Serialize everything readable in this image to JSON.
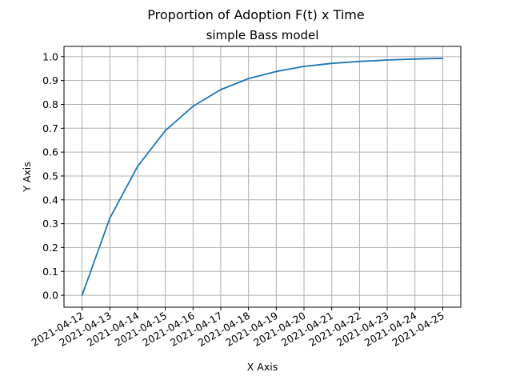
{
  "chart_data": {
    "type": "line",
    "title": "Proportion of Adoption F(t) x Time",
    "subtitle": "simple Bass model",
    "xlabel": "X Axis",
    "ylabel": "Y Axis",
    "x": [
      "2021-04-12",
      "2021-04-13",
      "2021-04-14",
      "2021-04-15",
      "2021-04-16",
      "2021-04-17",
      "2021-04-18",
      "2021-04-19",
      "2021-04-20",
      "2021-04-21",
      "2021-04-22",
      "2021-04-23",
      "2021-04-24",
      "2021-04-25"
    ],
    "series": [
      {
        "values": [
          0.0,
          0.323,
          0.54,
          0.69,
          0.792,
          0.862,
          0.908,
          0.938,
          0.959,
          0.972,
          0.98,
          0.986,
          0.99,
          0.993
        ]
      }
    ],
    "yticks": [
      "0.0",
      "0.1",
      "0.2",
      "0.3",
      "0.4",
      "0.5",
      "0.6",
      "0.7",
      "0.8",
      "0.9",
      "1.0"
    ],
    "ylim": [
      -0.05,
      1.043
    ],
    "grid": true,
    "line_color": "#1f77b4"
  }
}
